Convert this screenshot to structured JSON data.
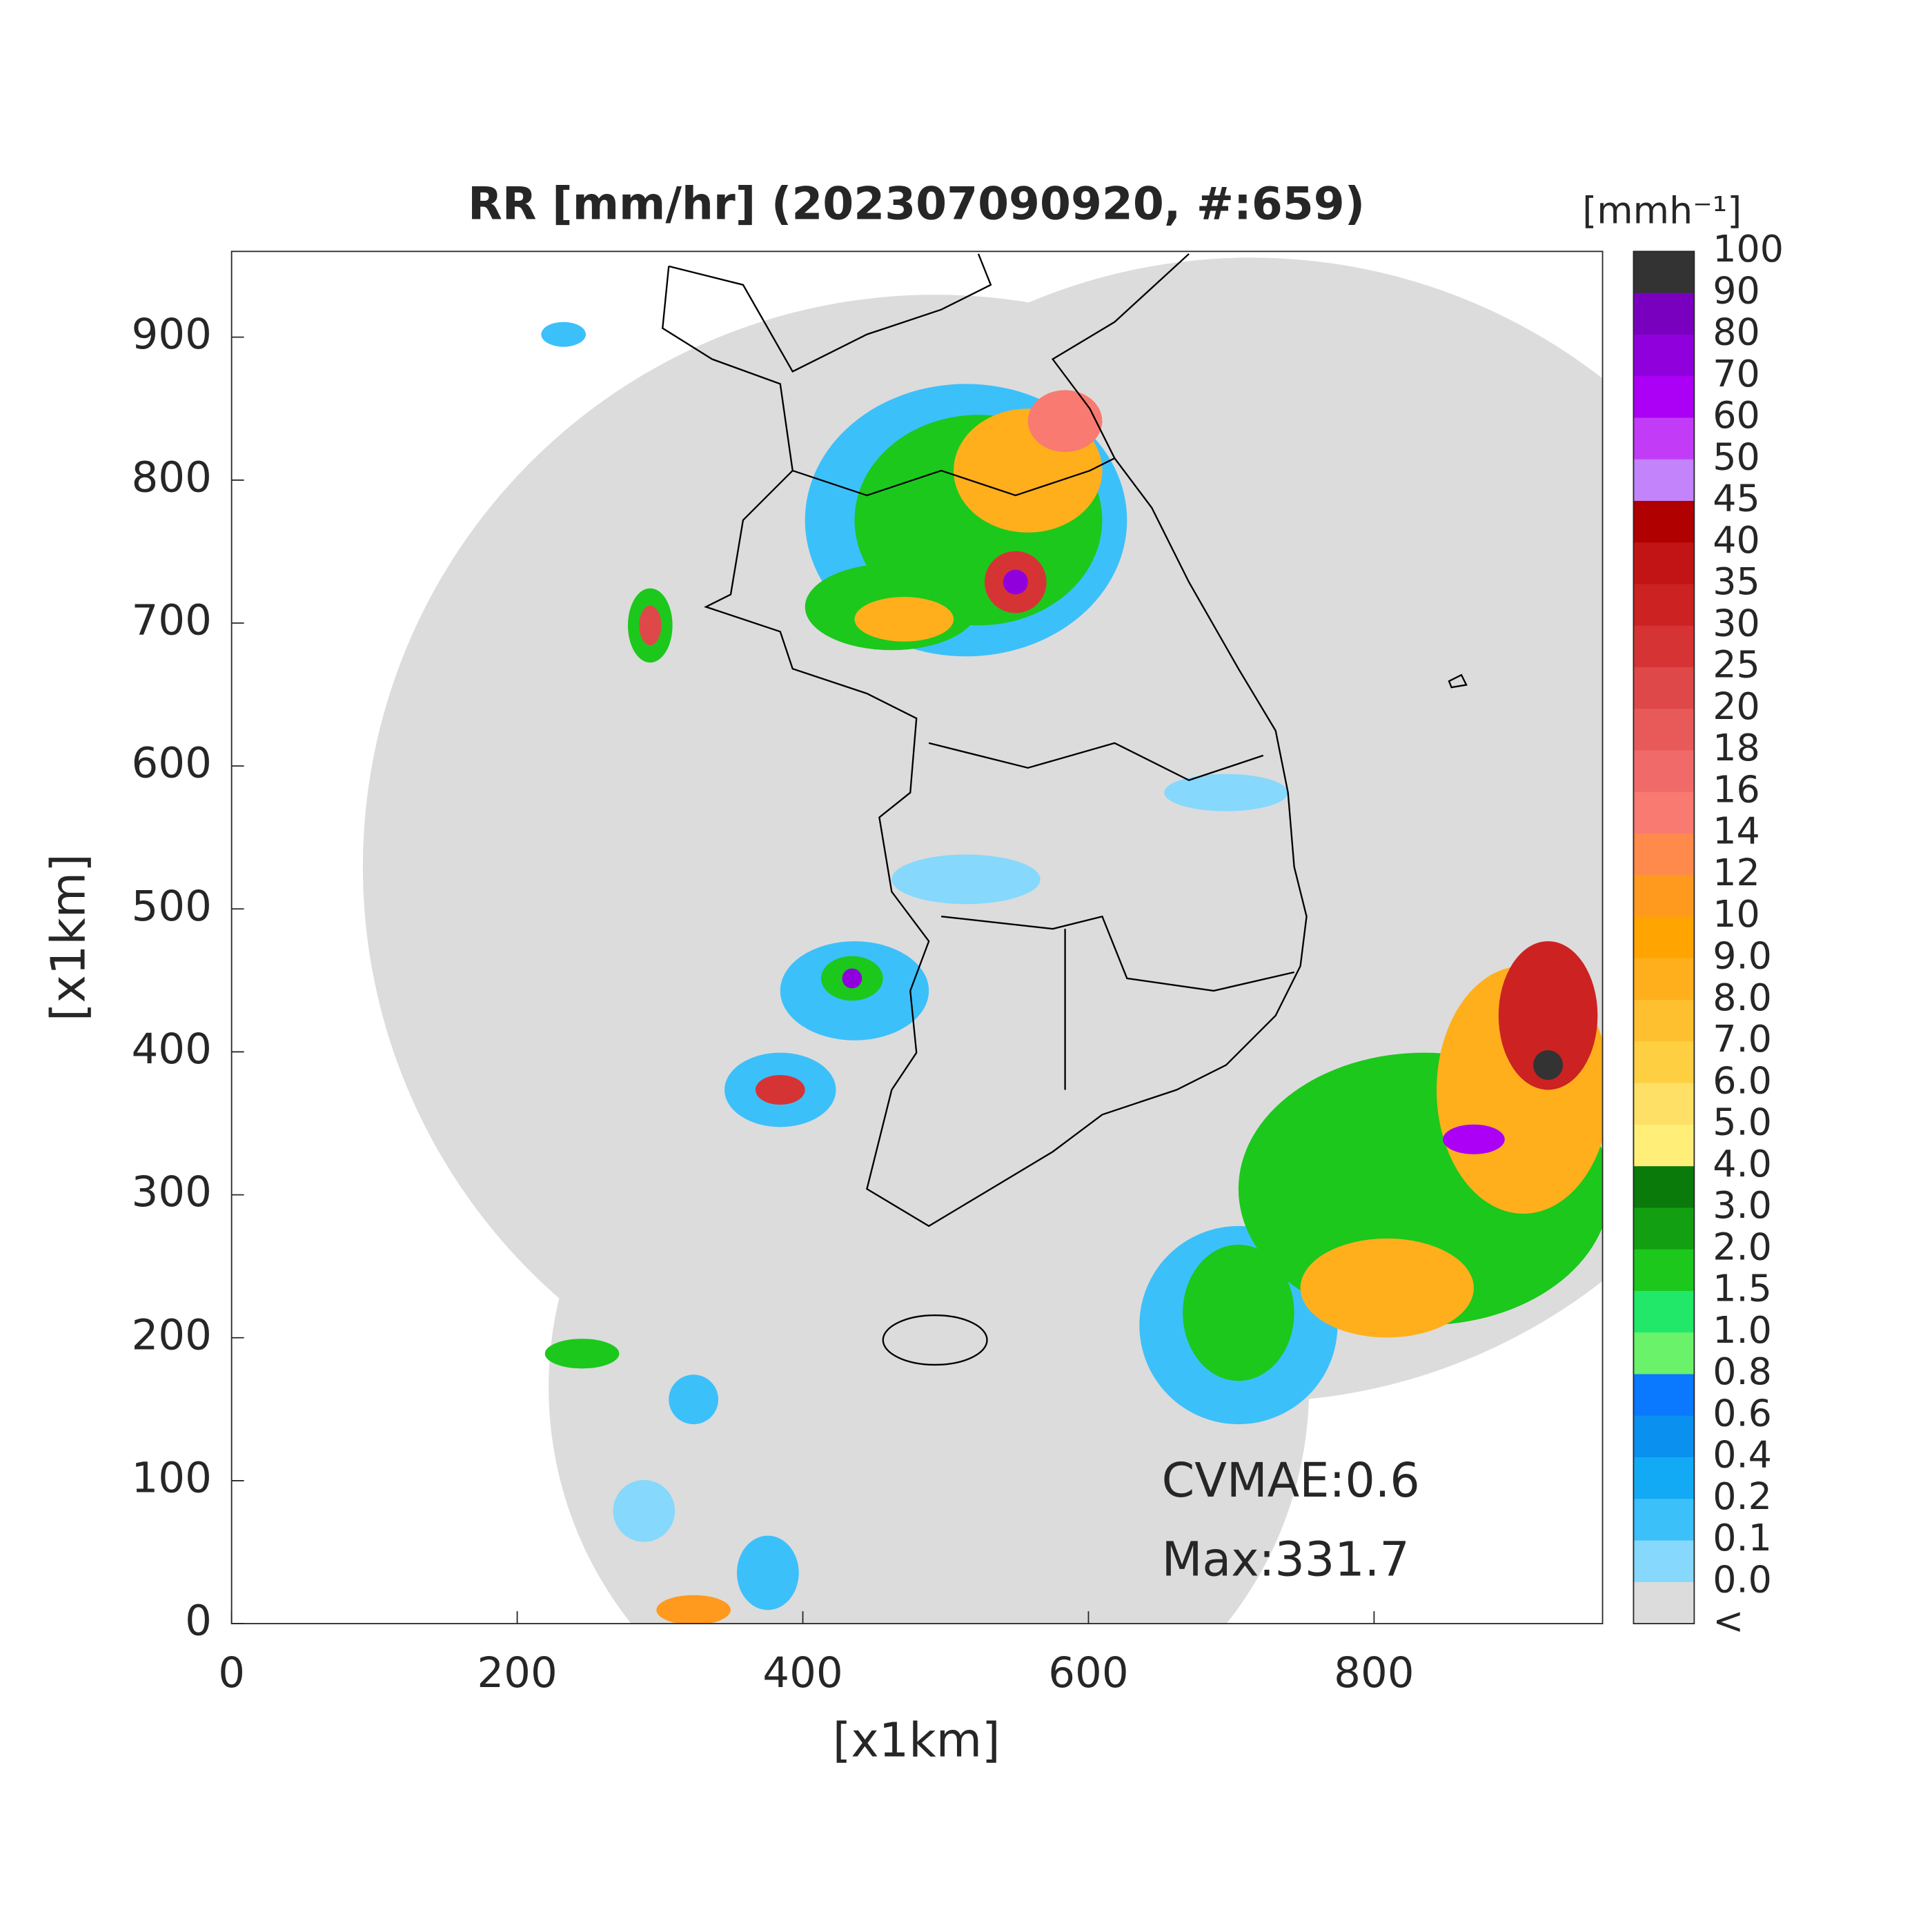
{
  "chart_data": {
    "type": "map",
    "title": "RR [mm/hr] (202307090920, #:659)",
    "x_label": "[x1km]",
    "y_label": "[x1km]",
    "xlim": [
      0,
      960
    ],
    "ylim": [
      0,
      960
    ],
    "xticks": [
      0,
      200,
      400,
      600,
      800
    ],
    "yticks": [
      0,
      100,
      200,
      300,
      400,
      500,
      600,
      700,
      800,
      900
    ],
    "annotations": [
      "CVMAE:0.6",
      "Max:331.7"
    ],
    "colorbar": {
      "title": "[mmh⁻¹]",
      "labels": [
        "100",
        "90",
        "80",
        "70",
        "60",
        "50",
        "45",
        "40",
        "35",
        "30",
        "25",
        "20",
        "18",
        "16",
        "14",
        "12",
        "10",
        "9.0",
        "8.0",
        "7.0",
        "6.0",
        "5.0",
        "4.0",
        "3.0",
        "2.0",
        "1.5",
        "1.0",
        "0.8",
        "0.6",
        "0.4",
        "0.2",
        "0.1",
        "0.0",
        "<"
      ],
      "colors": [
        "#333333",
        "#7a00bf",
        "#8f00dc",
        "#ab00f5",
        "#c23cf7",
        "#c283fb",
        "#b00000",
        "#c21414",
        "#cc2222",
        "#d63434",
        "#df4848",
        "#e85a5a",
        "#f06a6a",
        "#f87a70",
        "#ff8a4c",
        "#ff9a1e",
        "#ffa400",
        "#ffaf1c",
        "#ffc030",
        "#ffcf42",
        "#ffe066",
        "#ffee78",
        "#0a7a0a",
        "#12a012",
        "#1cc81c",
        "#22e86a",
        "#6af26a",
        "#0a78ff",
        "#0a90ef",
        "#12aaf5",
        "#3cc0fa",
        "#86d8fd",
        "#dcdcdc",
        "#ffffff"
      ]
    }
  }
}
